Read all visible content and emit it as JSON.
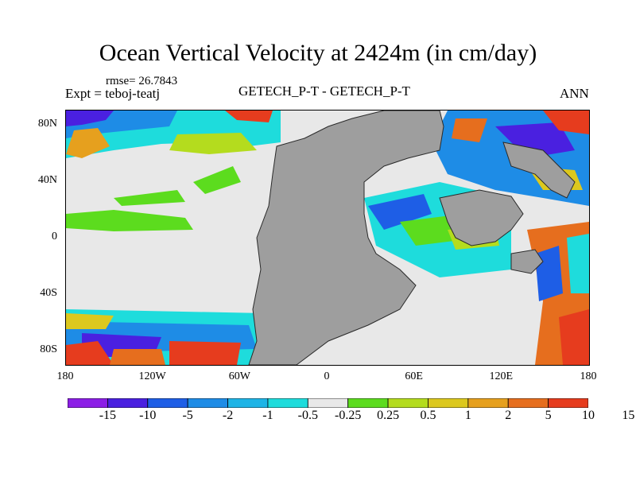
{
  "title": "Ocean Vertical Velocity at 2424m (in cm/day)",
  "rmse_text": "rmse= 26.7843",
  "expt_text": "Expt = teboj-teatj",
  "center_label": "GETECH_P-T - GETECH_P-T",
  "season": "ANN",
  "y_ticks": [
    {
      "label": "80N",
      "lat": 80
    },
    {
      "label": "40N",
      "lat": 40
    },
    {
      "label": "0",
      "lat": 0
    },
    {
      "label": "40S",
      "lat": -40
    },
    {
      "label": "80S",
      "lat": -80
    }
  ],
  "x_ticks": [
    {
      "label": "180",
      "lon": -180
    },
    {
      "label": "120W",
      "lon": -120
    },
    {
      "label": "60W",
      "lon": -60
    },
    {
      "label": "0",
      "lon": 0
    },
    {
      "label": "60E",
      "lon": 60
    },
    {
      "label": "120E",
      "lon": 120
    },
    {
      "label": "180",
      "lon": 180
    }
  ],
  "colorbar": {
    "colors": [
      "#8c1ee6",
      "#4a20e0",
      "#1e5ee6",
      "#1e8ce6",
      "#1eb4e6",
      "#1edcdc",
      "#e8e8e8",
      "#5cdc1e",
      "#b4dc1e",
      "#dcc81e",
      "#e6a01e",
      "#e66e1e",
      "#e63c1e"
    ],
    "labels": [
      "-15",
      "-10",
      "-5",
      "-2",
      "-1",
      "-0.5",
      "-0.25",
      "0.25",
      "0.5",
      "1",
      "2",
      "5",
      "10",
      "15"
    ]
  },
  "land_color": "#9e9e9e"
}
